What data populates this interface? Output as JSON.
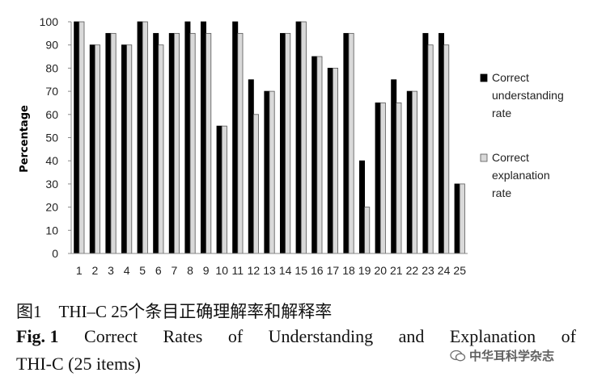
{
  "chart_data": {
    "type": "bar",
    "ylabel": "Percentage",
    "ylim": [
      0,
      100
    ],
    "yticks": [
      0,
      10,
      20,
      30,
      40,
      50,
      60,
      70,
      80,
      90,
      100
    ],
    "grid": false,
    "legend_position": "right",
    "categories": [
      "1",
      "2",
      "3",
      "4",
      "5",
      "6",
      "7",
      "8",
      "9",
      "10",
      "11",
      "12",
      "13",
      "14",
      "15",
      "16",
      "17",
      "18",
      "19",
      "20",
      "21",
      "22",
      "23",
      "24",
      "25"
    ],
    "series": [
      {
        "name": "Correct understanding rate",
        "legend_lines": [
          "Correct",
          "understanding",
          "rate"
        ],
        "color": "#000000",
        "values": [
          100,
          90,
          95,
          90,
          100,
          95,
          95,
          100,
          100,
          55,
          100,
          75,
          70,
          95,
          100,
          85,
          80,
          95,
          40,
          65,
          75,
          70,
          95,
          95,
          30
        ]
      },
      {
        "name": "Correct explanation rate",
        "legend_lines": [
          "Correct",
          "explanation",
          "rate"
        ],
        "color": "#d9d9d9",
        "values": [
          100,
          90,
          95,
          90,
          100,
          90,
          95,
          95,
          95,
          55,
          95,
          60,
          70,
          95,
          100,
          85,
          80,
          95,
          20,
          65,
          65,
          70,
          90,
          90,
          30
        ]
      }
    ]
  },
  "caption": {
    "chinese": "图1　THI–C 25个条目正确理解率和解释率",
    "fig_label": "Fig. 1",
    "english_line1_words": [
      "Correct",
      "Rates",
      "of",
      "Understanding",
      "and",
      "Explanation",
      "of"
    ],
    "english_line2": "THI-C (25 items)"
  },
  "watermark": {
    "text": "中华耳科学杂志"
  }
}
